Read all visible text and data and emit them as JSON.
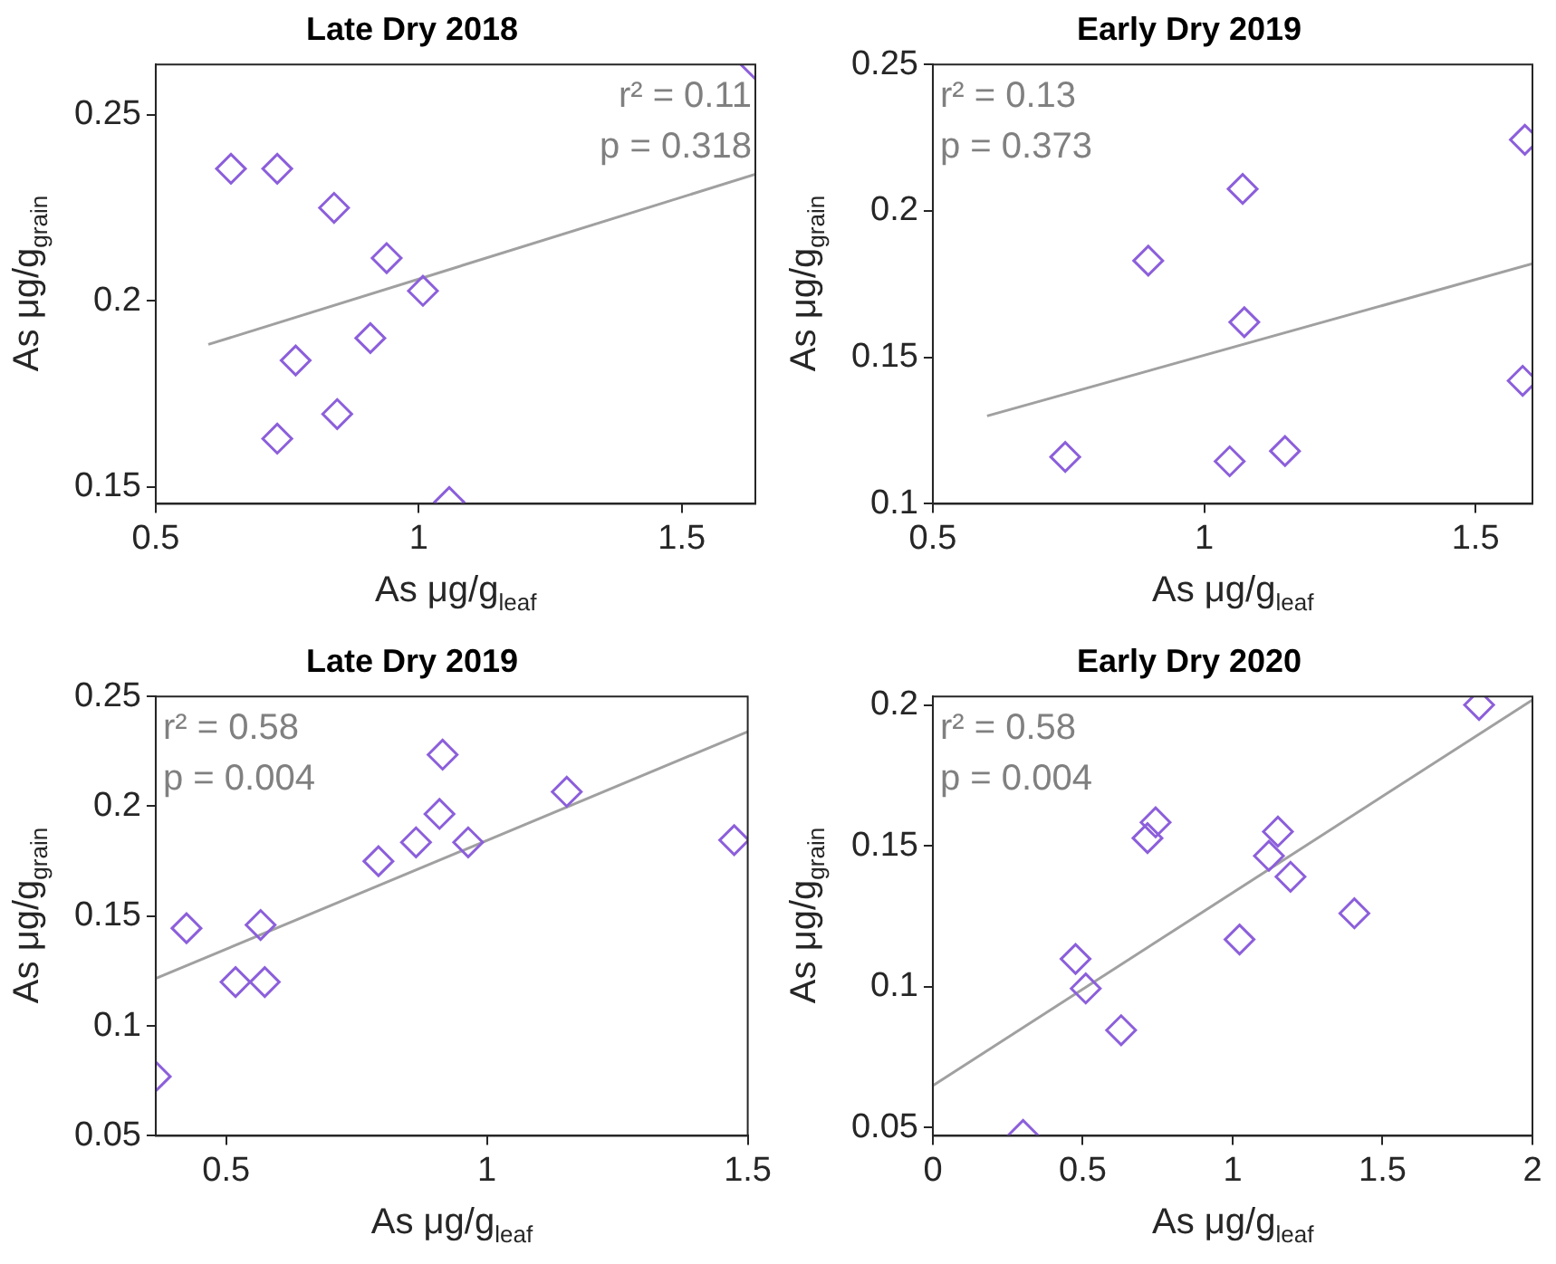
{
  "chart_data": [
    {
      "type": "scatter",
      "title": "Late Dry 2018",
      "xlabel": "As μg/g$_{leaf}$",
      "ylabel": "As μg/g$_{grain}$",
      "xlim": [
        0.5,
        1.64
      ],
      "ylim": [
        0.1455,
        0.2635
      ],
      "xticks": [
        0.5,
        1,
        1.5
      ],
      "yticks": [
        0.15,
        0.2,
        0.25
      ],
      "legend": false,
      "annotations": [
        "r² = 0.11",
        "p = 0.318"
      ],
      "series": [
        {
          "type": "scatter",
          "color": "#8c5fdb",
          "marker": "diamond",
          "x": [
            1.64,
            0.643,
            0.731,
            0.839,
            0.939,
            1.008,
            0.908,
            0.766,
            0.845,
            0.731,
            1.058
          ],
          "values": [
            0.2635,
            0.2355,
            0.2355,
            0.225,
            0.2115,
            0.2027,
            0.19,
            0.184,
            0.1696,
            0.163,
            0.146
          ]
        },
        {
          "type": "line",
          "color": "#a0a0a0",
          "marker": "none",
          "x": [
            0.6,
            1.64
          ],
          "values": [
            0.1883,
            0.234
          ]
        }
      ]
    },
    {
      "type": "scatter",
      "title": "Early Dry 2019",
      "xlabel": "As μg/g$_{leaf}$",
      "ylabel": "As μg/g$_{grain}$",
      "xlim": [
        0.5,
        1.605
      ],
      "ylim": [
        0.1,
        0.25
      ],
      "xticks": [
        0.5,
        1,
        1.5
      ],
      "yticks": [
        0.1,
        0.15,
        0.2,
        0.25
      ],
      "legend": false,
      "annotations": [
        "r² = 0.13",
        "p = 0.373"
      ],
      "series": [
        {
          "type": "scatter",
          "color": "#8c5fdb",
          "marker": "diamond",
          "x": [
            0.744,
            0.897,
            1.071,
            1.074,
            1.047,
            1.149,
            1.591,
            1.587
          ],
          "values": [
            0.116,
            0.183,
            0.2075,
            0.162,
            0.1145,
            0.118,
            0.2243,
            0.142
          ]
        },
        {
          "type": "line",
          "color": "#a0a0a0",
          "marker": "none",
          "x": [
            0.6,
            1.605
          ],
          "values": [
            0.13,
            0.182
          ]
        }
      ]
    },
    {
      "type": "scatter",
      "title": "Late Dry 2019",
      "xlabel": "As μg/g$_{leaf}$",
      "ylabel": "As μg/g$_{grain}$",
      "xlim": [
        0.365,
        1.5
      ],
      "ylim": [
        0.05,
        0.25
      ],
      "xticks": [
        0.5,
        1,
        1.5
      ],
      "yticks": [
        0.05,
        0.1,
        0.15,
        0.2,
        0.25
      ],
      "legend": false,
      "annotations": [
        "r² = 0.58",
        "p = 0.004"
      ],
      "series": [
        {
          "type": "scatter",
          "color": "#8c5fdb",
          "marker": "diamond",
          "x": [
            0.365,
            0.424,
            0.518,
            0.574,
            0.566,
            0.792,
            0.864,
            0.909,
            0.915,
            0.964,
            1.153,
            1.474
          ],
          "values": [
            0.077,
            0.1445,
            0.12,
            0.12,
            0.146,
            0.175,
            0.1836,
            0.1965,
            0.2235,
            0.1836,
            0.2066,
            0.1846
          ]
        },
        {
          "type": "line",
          "color": "#a0a0a0",
          "marker": "none",
          "x": [
            0.365,
            1.5
          ],
          "values": [
            0.1216,
            0.234
          ]
        }
      ]
    },
    {
      "type": "scatter",
      "title": "Early Dry 2020",
      "xlabel": "As μg/g$_{leaf}$",
      "ylabel": "As μg/g$_{grain}$",
      "xlim": [
        0,
        2
      ],
      "ylim": [
        0.047,
        0.203
      ],
      "xticks": [
        0,
        0.5,
        1,
        1.5,
        2
      ],
      "yticks": [
        0.05,
        0.1,
        0.15,
        0.2
      ],
      "legend": false,
      "annotations": [
        "r² = 0.58",
        "p = 0.004"
      ],
      "series": [
        {
          "type": "scatter",
          "color": "#8c5fdb",
          "marker": "diamond",
          "x": [
            0.301,
            0.476,
            0.51,
            0.628,
            0.716,
            0.743,
            1.023,
            1.121,
            1.151,
            1.193,
            1.406,
            1.822
          ],
          "values": [
            0.0473,
            0.1098,
            0.0993,
            0.0845,
            0.1527,
            0.1583,
            0.1167,
            0.1464,
            0.155,
            0.139,
            0.126,
            0.2
          ]
        },
        {
          "type": "line",
          "color": "#a0a0a0",
          "marker": "none",
          "x": [
            0,
            2
          ],
          "values": [
            0.0648,
            0.2018
          ]
        }
      ]
    }
  ]
}
